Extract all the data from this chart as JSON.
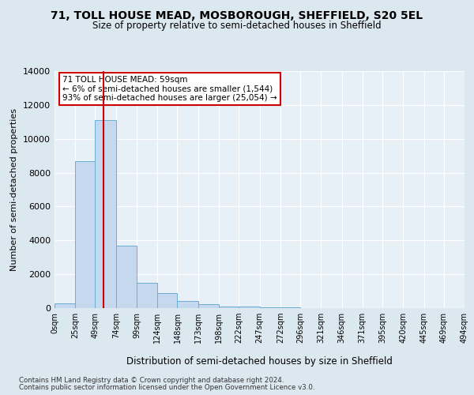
{
  "title": "71, TOLL HOUSE MEAD, MOSBOROUGH, SHEFFIELD, S20 5EL",
  "subtitle": "Size of property relative to semi-detached houses in Sheffield",
  "xlabel": "Distribution of semi-detached houses by size in Sheffield",
  "ylabel": "Number of semi-detached properties",
  "property_size": 59,
  "property_name": "71 TOLL HOUSE MEAD",
  "pct_smaller": 6,
  "count_smaller": 1544,
  "pct_larger": 93,
  "count_larger": 25054,
  "bin_edges": [
    0,
    25,
    49,
    74,
    99,
    124,
    148,
    173,
    198,
    222,
    247,
    272,
    296,
    321,
    346,
    371,
    395,
    420,
    445,
    469,
    494
  ],
  "bin_labels": [
    "0sqm",
    "25sqm",
    "49sqm",
    "74sqm",
    "99sqm",
    "124sqm",
    "148sqm",
    "173sqm",
    "198sqm",
    "222sqm",
    "247sqm",
    "272sqm",
    "296sqm",
    "321sqm",
    "346sqm",
    "371sqm",
    "395sqm",
    "420sqm",
    "445sqm",
    "469sqm",
    "494sqm"
  ],
  "bar_heights": [
    300,
    8700,
    11100,
    3700,
    1500,
    900,
    400,
    230,
    100,
    100,
    50,
    50,
    0,
    0,
    0,
    0,
    0,
    0,
    0,
    0
  ],
  "bar_color": "#c5d8ee",
  "bar_edge_color": "#6aaed6",
  "vline_color": "#cc0000",
  "vline_x": 59,
  "ylim": [
    0,
    14000
  ],
  "yticks": [
    0,
    2000,
    4000,
    6000,
    8000,
    10000,
    12000,
    14000
  ],
  "bg_color": "#dce8f0",
  "plot_bg_color": "#e8f0f7",
  "grid_color": "#ffffff",
  "annotation_box_color": "#ffffff",
  "annotation_box_edge": "#cc0000",
  "footer_line1": "Contains HM Land Registry data © Crown copyright and database right 2024.",
  "footer_line2": "Contains public sector information licensed under the Open Government Licence v3.0."
}
